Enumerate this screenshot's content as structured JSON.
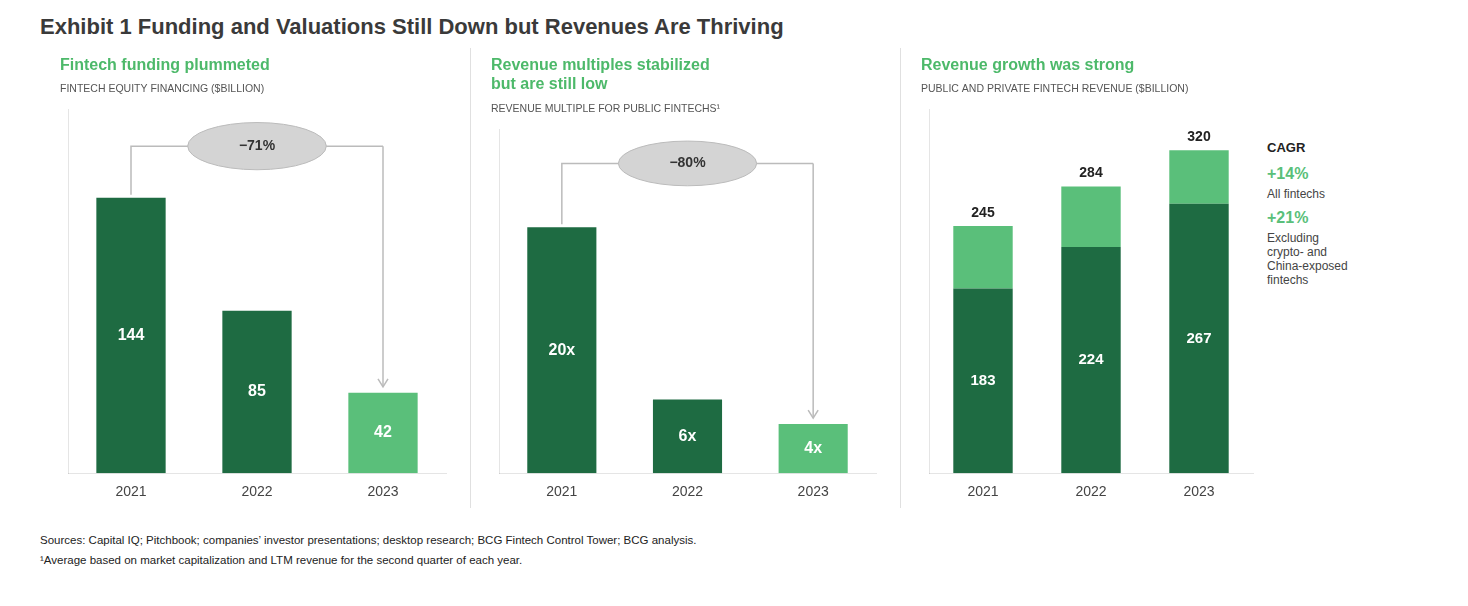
{
  "title": "Exhibit 1 Funding and Valuations Still Down but Revenues Are Thriving",
  "annotations": [
    "Sources: Capital IQ; Pitchbook; companies’ investor presentations; desktop research; BCG Fintech Control Tower; BCG analysis.",
    "¹Average based on market capitalization and LTM revenue for the second quarter of each year."
  ],
  "chart_data": [
    {
      "type": "bar",
      "title": "Fintech funding plummeted",
      "ylabel": "FINTECH EQUITY FINANCING ($BILLION)",
      "categories": [
        "2021",
        "2022",
        "2023"
      ],
      "values": [
        144,
        85,
        42
      ],
      "colors": [
        "#1e6b42",
        "#1e6b42",
        "#5abf7a"
      ],
      "ylim": [
        0,
        190
      ],
      "grid": false,
      "tick_labels": "x",
      "data_labels": true,
      "annotations": [
        "−71%"
      ]
    },
    {
      "type": "bar",
      "title": "Revenue multiples stabilized\nbut are still low",
      "ylabel": "REVENUE MULTIPLE FOR PUBLIC FINTECHS¹",
      "categories": [
        "2021",
        "2022",
        "2023"
      ],
      "values": [
        20,
        6,
        4
      ],
      "value_labels": [
        "20x",
        "6x",
        "4x"
      ],
      "colors": [
        "#1e6b42",
        "#1e6b42",
        "#5abf7a"
      ],
      "ylim": [
        0,
        28
      ],
      "grid": false,
      "tick_labels": "x",
      "data_labels": true,
      "annotations": [
        "−80%"
      ]
    },
    {
      "type": "bar",
      "stacked": true,
      "title": "Revenue growth was strong",
      "ylabel": "PUBLIC AND PRIVATE FINTECH REVENUE ($BILLION)",
      "categories": [
        "2021",
        "2022",
        "2023"
      ],
      "series": [
        {
          "color": "#1e6b42",
          "values": [
            183,
            224,
            267
          ],
          "data_labels": true
        },
        {
          "color": "#5abf7a",
          "values": [
            62,
            60,
            53
          ],
          "data_labels": false
        }
      ],
      "totals": [
        245,
        284,
        320
      ],
      "ylim": [
        0,
        360
      ],
      "grid": false,
      "tick_labels": "x",
      "annotations": [
        "CAGR",
        "+14%",
        "All fintechs",
        "+21%",
        "Excluding\ncrypto- and\nChina-exposed\nfintechs"
      ]
    }
  ]
}
